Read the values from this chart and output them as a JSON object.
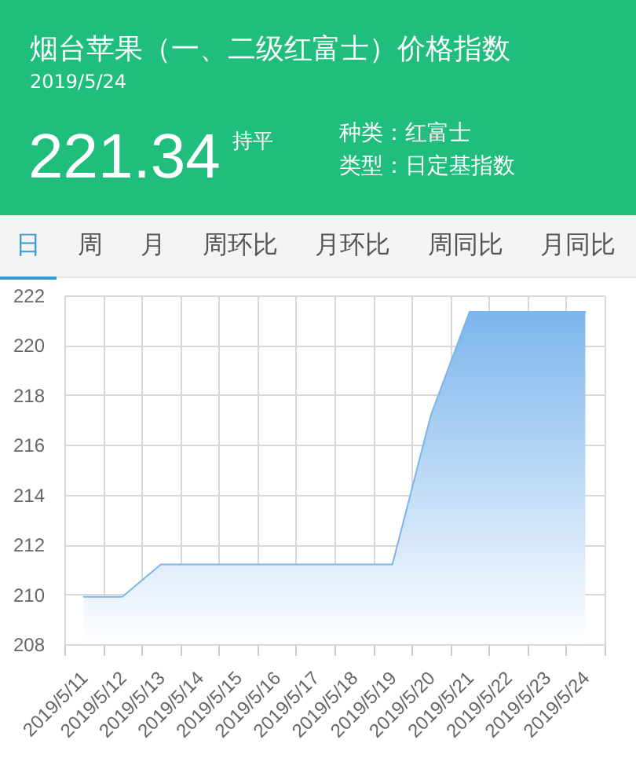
{
  "chart_data": {
    "type": "area",
    "title": "烟台苹果（一、二级红富士）价格指数",
    "subtitle": "2019/5/24",
    "annotations": [
      "221.34",
      "持平",
      "种类：红富士",
      "类型：日定基指数",
      "日",
      "周",
      "月",
      "周环比",
      "月环比",
      "周同比",
      "月同比"
    ],
    "categories": [
      "2019/5/11",
      "2019/5/12",
      "2019/5/13",
      "2019/5/14",
      "2019/5/15",
      "2019/5/16",
      "2019/5/17",
      "2019/5/18",
      "2019/5/19",
      "2019/5/20",
      "2019/5/21",
      "2019/5/22",
      "2019/5/23",
      "2019/5/24"
    ],
    "series": [
      {
        "color": "#7cb5ec",
        "values": [
          209.9,
          209.9,
          211.2,
          211.2,
          211.2,
          211.2,
          211.2,
          211.2,
          211.2,
          217.2,
          221.34,
          221.34,
          221.34,
          221.34
        ]
      }
    ],
    "ylim": [
      208,
      222
    ],
    "yticks": [
      208,
      210,
      212,
      214,
      216,
      218,
      220,
      222
    ],
    "grid": true
  }
}
